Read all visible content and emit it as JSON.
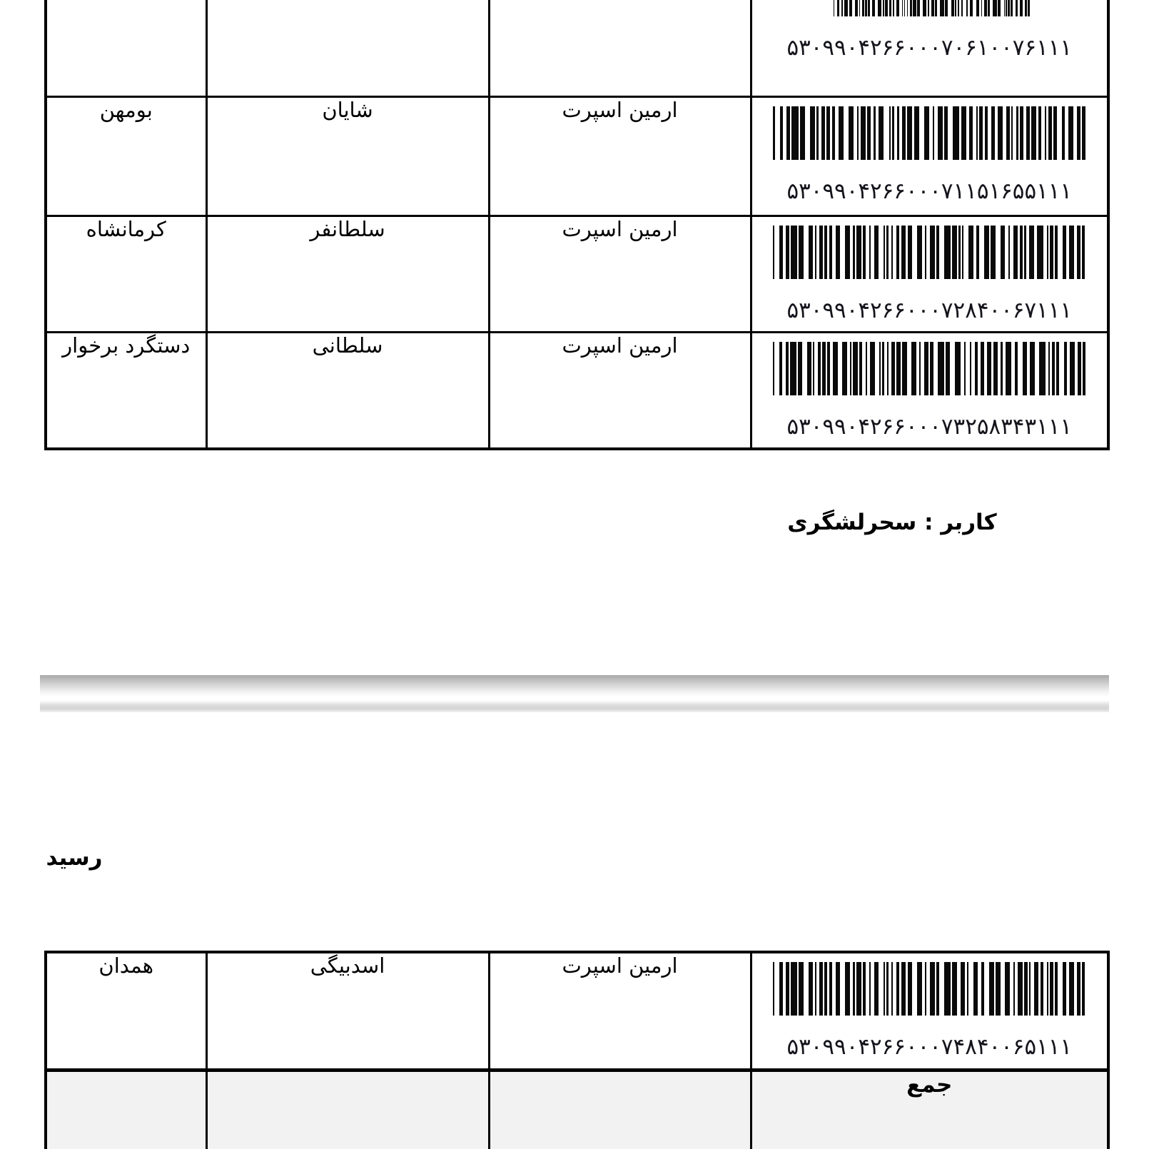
{
  "page": {
    "user_label": "کاربر : سحرلشگری",
    "receipt_heading": "رسید",
    "colors": {
      "border": "#000000",
      "total_row_bg": "#f2f2f2",
      "divider_dark": "#a9a9a9",
      "divider_light": "#d4d4d4",
      "barcode_ink": "#0a0a0a"
    }
  },
  "top_table": {
    "columns": [
      "city",
      "name",
      "company",
      "barcode"
    ],
    "rows": [
      {
        "city": "",
        "name": "",
        "company": "",
        "barcode_label": "۵۳۰۹۹۰۴۲۶۶۰۰۰۷۰۶۱۰۰۷۶۱۱۱"
      },
      {
        "city": "بومهن",
        "name": "شایان",
        "company": "ارمین اسپرت",
        "barcode_label": "۵۳۰۹۹۰۴۲۶۶۰۰۰۷۱۱۵۱۶۵۵۱۱۱"
      },
      {
        "city": "کرمانشاه",
        "name": "سلطانفر",
        "company": "ارمین اسپرت",
        "barcode_label": "۵۳۰۹۹۰۴۲۶۶۰۰۰۷۲۸۴۰۰۶۷۱۱۱"
      },
      {
        "city": "دستگرد برخوار",
        "name": "سلطانی",
        "company": "ارمین اسپرت",
        "barcode_label": "۵۳۰۹۹۰۴۲۶۶۰۰۰۷۳۲۵۸۳۴۳۱۱۱"
      }
    ]
  },
  "receipt_table": {
    "rows": [
      {
        "city": "همدان",
        "name": "اسدبیگی",
        "company": "ارمین اسپرت",
        "barcode_label": "۵۳۰۹۹۰۴۲۶۶۰۰۰۷۴۸۴۰۰۶۵۱۱۱"
      }
    ],
    "total_label": "جمع"
  }
}
